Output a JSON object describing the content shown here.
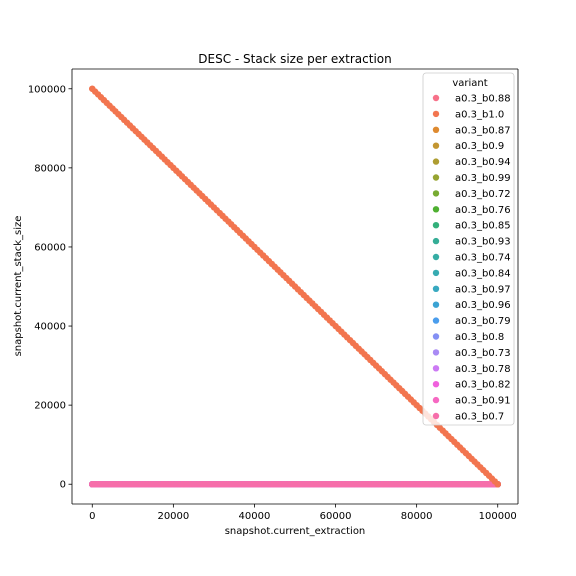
{
  "chart_data": {
    "type": "scatter",
    "title": "DESC - Stack size per extraction",
    "xlabel": "snapshot.current_extraction",
    "ylabel": "snapshot.current_stack_size",
    "xlim": [
      -5000,
      105000
    ],
    "ylim": [
      -5000,
      105000
    ],
    "x_ticks": [
      0,
      20000,
      40000,
      60000,
      80000,
      100000
    ],
    "y_ticks": [
      0,
      20000,
      40000,
      60000,
      80000,
      100000
    ],
    "grid": false,
    "legend_title": "variant",
    "legend_position": "top-right",
    "series": [
      {
        "name": "a0.3_b0.88",
        "color": "#f77189",
        "x": [
          0,
          100000
        ],
        "y": [
          0,
          0
        ]
      },
      {
        "name": "a0.3_b1.0",
        "color": "#f2754f",
        "x": [
          0,
          100000
        ],
        "y": [
          100000,
          0
        ]
      },
      {
        "name": "a0.3_b0.87",
        "color": "#de8a30",
        "x": [
          0,
          100000
        ],
        "y": [
          0,
          0
        ]
      },
      {
        "name": "a0.3_b0.9",
        "color": "#c39631",
        "x": [
          0,
          100000
        ],
        "y": [
          0,
          0
        ]
      },
      {
        "name": "a0.3_b0.94",
        "color": "#ae9d31",
        "x": [
          0,
          100000
        ],
        "y": [
          0,
          0
        ]
      },
      {
        "name": "a0.3_b0.99",
        "color": "#97a431",
        "x": [
          0,
          100000
        ],
        "y": [
          0,
          0
        ]
      },
      {
        "name": "a0.3_b0.72",
        "color": "#77ab31",
        "x": [
          0,
          100000
        ],
        "y": [
          0,
          0
        ]
      },
      {
        "name": "a0.3_b0.76",
        "color": "#4fb031",
        "x": [
          0,
          100000
        ],
        "y": [
          0,
          0
        ]
      },
      {
        "name": "a0.3_b0.85",
        "color": "#33b07a",
        "x": [
          0,
          100000
        ],
        "y": [
          0,
          0
        ]
      },
      {
        "name": "a0.3_b0.93",
        "color": "#35ad96",
        "x": [
          0,
          100000
        ],
        "y": [
          0,
          0
        ]
      },
      {
        "name": "a0.3_b0.74",
        "color": "#36ada4",
        "x": [
          0,
          100000
        ],
        "y": [
          0,
          0
        ]
      },
      {
        "name": "a0.3_b0.84",
        "color": "#37abb1",
        "x": [
          0,
          100000
        ],
        "y": [
          0,
          0
        ]
      },
      {
        "name": "a0.3_b0.97",
        "color": "#38a9c0",
        "x": [
          0,
          100000
        ],
        "y": [
          0,
          0
        ]
      },
      {
        "name": "a0.3_b0.96",
        "color": "#3ba3d3",
        "x": [
          0,
          100000
        ],
        "y": [
          0,
          0
        ]
      },
      {
        "name": "a0.3_b0.79",
        "color": "#4a9ded",
        "x": [
          0,
          100000
        ],
        "y": [
          0,
          0
        ]
      },
      {
        "name": "a0.3_b0.8",
        "color": "#8490f4",
        "x": [
          0,
          100000
        ],
        "y": [
          0,
          0
        ]
      },
      {
        "name": "a0.3_b0.73",
        "color": "#a98af4",
        "x": [
          0,
          100000
        ],
        "y": [
          0,
          0
        ]
      },
      {
        "name": "a0.3_b0.78",
        "color": "#cc7af4",
        "x": [
          0,
          100000
        ],
        "y": [
          0,
          0
        ]
      },
      {
        "name": "a0.3_b0.82",
        "color": "#f061dd",
        "x": [
          0,
          100000
        ],
        "y": [
          0,
          0
        ]
      },
      {
        "name": "a0.3_b0.91",
        "color": "#f668c2",
        "x": [
          0,
          100000
        ],
        "y": [
          0,
          0
        ]
      },
      {
        "name": "a0.3_b0.7",
        "color": "#f66eaa",
        "x": [
          0,
          100000
        ],
        "y": [
          0,
          0
        ]
      }
    ]
  }
}
